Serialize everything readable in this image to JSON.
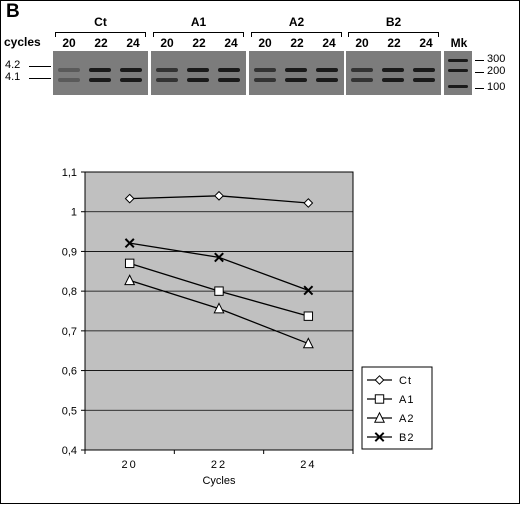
{
  "panel_letter": "B",
  "gel": {
    "row_label": "cycles",
    "groups": [
      {
        "label": "Ct",
        "lanes": [
          "20",
          "22",
          "24"
        ]
      },
      {
        "label": "A1",
        "lanes": [
          "20",
          "22",
          "24"
        ]
      },
      {
        "label": "A2",
        "lanes": [
          "20",
          "22",
          "24"
        ]
      },
      {
        "label": "B2",
        "lanes": [
          "20",
          "22",
          "24"
        ]
      }
    ],
    "marker_label": "Mk",
    "band_labels": [
      "4.2",
      "4.1"
    ],
    "marker_sizes": [
      "300",
      "200",
      "100"
    ]
  },
  "chart_data": {
    "type": "line",
    "x": [
      20,
      22,
      24
    ],
    "x_tick_labels": [
      "20",
      "22",
      "24"
    ],
    "xlabel": "Cycles",
    "ylabel": "",
    "ylim": [
      0.4,
      1.1
    ],
    "y_ticks": [
      0.4,
      0.5,
      0.6,
      0.7,
      0.8,
      0.9,
      1.0,
      1.1
    ],
    "y_tick_labels": [
      "0,4",
      "0,5",
      "0,6",
      "0,7",
      "0,8",
      "0,9",
      "1",
      "1,1"
    ],
    "grid": true,
    "legend_position": "right",
    "plot_background": "#c0c0c0",
    "series": [
      {
        "name": "Ct",
        "marker": "diamond",
        "values": [
          1.033,
          1.04,
          1.022
        ]
      },
      {
        "name": "A1",
        "marker": "square",
        "values": [
          0.87,
          0.8,
          0.737
        ]
      },
      {
        "name": "A2",
        "marker": "triangle",
        "values": [
          0.827,
          0.756,
          0.668
        ]
      },
      {
        "name": "B2",
        "marker": "x",
        "values": [
          0.921,
          0.885,
          0.802
        ]
      }
    ]
  }
}
